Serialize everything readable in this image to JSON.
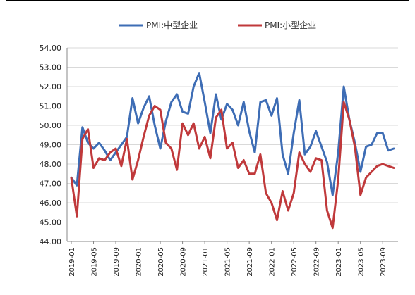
{
  "chart_data": {
    "type": "line",
    "title": "",
    "xlabel": "",
    "ylabel": "",
    "ylim": [
      44.0,
      54.0
    ],
    "yticks": [
      "44.00",
      "45.00",
      "46.00",
      "47.00",
      "48.00",
      "49.00",
      "50.00",
      "51.00",
      "52.00",
      "53.00",
      "54.00"
    ],
    "xticks": [
      "2019-01",
      "2019-05",
      "2019-09",
      "2020-01",
      "2020-05",
      "2020-09",
      "2021-01",
      "2021-05",
      "2021-09",
      "2022-01",
      "2022-05",
      "2022-09",
      "2023-01",
      "2023-05",
      "2023-09"
    ],
    "legend_position": "top-center",
    "grid": "horizontal",
    "x": [
      "2019-01",
      "2019-02",
      "2019-03",
      "2019-04",
      "2019-05",
      "2019-06",
      "2019-07",
      "2019-08",
      "2019-09",
      "2019-10",
      "2019-11",
      "2019-12",
      "2020-01",
      "2020-02",
      "2020-03",
      "2020-04",
      "2020-05",
      "2020-06",
      "2020-07",
      "2020-08",
      "2020-09",
      "2020-10",
      "2020-11",
      "2020-12",
      "2021-01",
      "2021-02",
      "2021-03",
      "2021-04",
      "2021-05",
      "2021-06",
      "2021-07",
      "2021-08",
      "2021-09",
      "2021-10",
      "2021-11",
      "2021-12",
      "2022-01",
      "2022-02",
      "2022-03",
      "2022-04",
      "2022-05",
      "2022-06",
      "2022-07",
      "2022-08",
      "2022-09",
      "2022-10",
      "2022-11",
      "2022-12",
      "2023-01",
      "2023-02",
      "2023-03",
      "2023-04",
      "2023-05",
      "2023-06",
      "2023-07",
      "2023-08",
      "2023-09",
      "2023-10",
      "2023-11"
    ],
    "series": [
      {
        "name": "PMI:中型企业",
        "color": "#3e6db5",
        "values": [
          47.3,
          46.9,
          49.9,
          49.1,
          48.8,
          49.1,
          48.7,
          48.2,
          48.6,
          49.0,
          49.4,
          51.4,
          50.1,
          50.9,
          51.5,
          50.0,
          48.8,
          50.2,
          51.2,
          51.6,
          50.7,
          50.6,
          52.0,
          52.7,
          51.2,
          49.6,
          51.6,
          50.3,
          51.1,
          50.8,
          50.0,
          51.2,
          49.7,
          48.6,
          51.2,
          51.3,
          50.5,
          51.4,
          48.5,
          47.5,
          49.6,
          51.3,
          48.5,
          48.9,
          49.7,
          48.9,
          48.1,
          46.4,
          48.6,
          52.0,
          50.3,
          49.1,
          47.6,
          48.9,
          49.0,
          49.6,
          49.6,
          48.7,
          48.8
        ]
      },
      {
        "name": "PMI:小型企业",
        "color": "#c0393b",
        "values": [
          47.3,
          45.3,
          49.3,
          49.8,
          47.8,
          48.3,
          48.2,
          48.6,
          48.8,
          47.9,
          49.3,
          47.2,
          48.2,
          49.4,
          50.5,
          51.0,
          50.8,
          49.1,
          48.8,
          47.7,
          50.1,
          49.5,
          50.1,
          48.8,
          49.4,
          48.3,
          50.4,
          50.8,
          48.8,
          49.1,
          47.8,
          48.2,
          47.5,
          47.5,
          48.5,
          46.5,
          46.0,
          45.1,
          46.6,
          45.6,
          46.5,
          48.6,
          48.0,
          47.6,
          48.3,
          48.2,
          45.6,
          44.7,
          47.2,
          51.2,
          50.3,
          48.9,
          46.4,
          47.3,
          47.6,
          47.9,
          48.0,
          47.9,
          47.8
        ]
      }
    ]
  }
}
